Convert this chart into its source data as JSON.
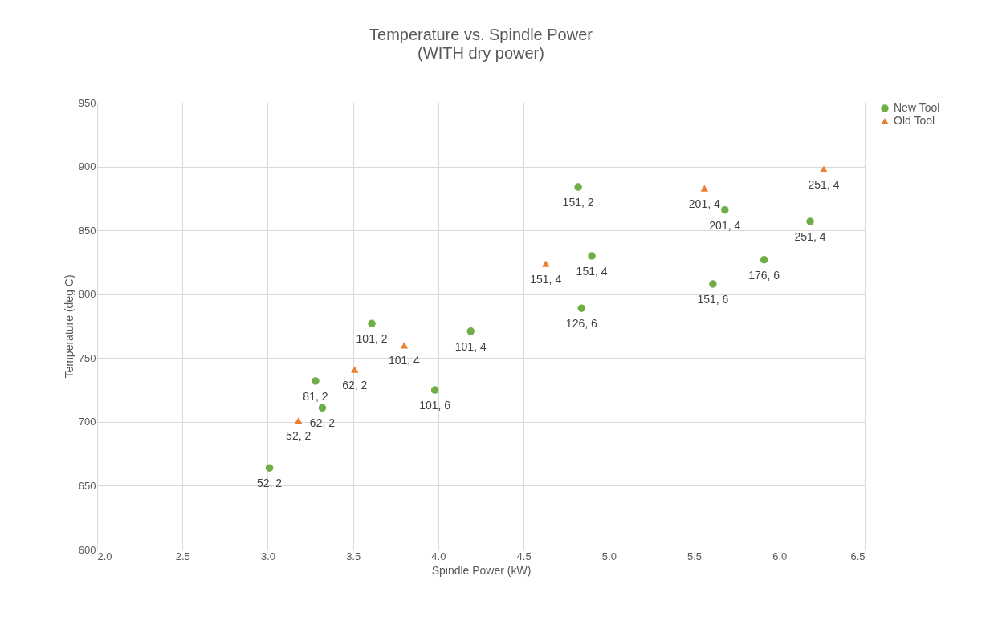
{
  "chart_data": {
    "type": "scatter",
    "title": "Temperature vs. Spindle Power",
    "subtitle": "(WITH dry power)",
    "xlabel": "Spindle Power (kW)",
    "ylabel": "Temperature (deg C)",
    "xlim": [
      2.0,
      6.5
    ],
    "xticks": [
      {
        "value": 2,
        "label": "2.0"
      },
      2.5,
      {
        "value": 3,
        "label": "3.0"
      },
      3.5,
      {
        "value": 4,
        "label": "4.0"
      },
      4.5,
      {
        "value": 5,
        "label": "5.0"
      },
      5.5,
      {
        "value": 6,
        "label": "6.0"
      },
      6.5
    ],
    "ylim": [
      600,
      950
    ],
    "yticks": [
      600,
      650,
      700,
      750,
      800,
      850,
      900,
      950
    ],
    "grid": true,
    "legend": "right",
    "series": [
      {
        "name": "New Tool",
        "color": "#70ad47",
        "marker": "circle",
        "x": [
          3.01,
          3.28,
          3.32,
          3.61,
          3.98,
          4.19,
          4.82,
          4.9,
          4.84,
          5.61,
          5.68,
          5.91,
          6.18
        ],
        "values": [
          664,
          732,
          711,
          777,
          725,
          771,
          884,
          830,
          789,
          808,
          866,
          827,
          857
        ]
      },
      {
        "name": "Old Tool",
        "color": "#ed7d31",
        "marker": "triangle",
        "x": [
          3.18,
          3.51,
          3.8,
          4.63,
          5.56,
          6.26
        ],
        "values": [
          701,
          741,
          760,
          824,
          883,
          898
        ]
      }
    ],
    "annotations": [
      {
        "text": "52, 2",
        "x": 3.01,
        "y": 664
      },
      {
        "text": "81, 2",
        "x": 3.28,
        "y": 732
      },
      {
        "text": "62, 2",
        "x": 3.32,
        "y": 711
      },
      {
        "text": "101, 2",
        "x": 3.61,
        "y": 777
      },
      {
        "text": "101, 6",
        "x": 3.98,
        "y": 725
      },
      {
        "text": "101, 4",
        "x": 4.19,
        "y": 771
      },
      {
        "text": "151, 2",
        "x": 4.82,
        "y": 884
      },
      {
        "text": "151, 4",
        "x": 4.9,
        "y": 830
      },
      {
        "text": "126, 6",
        "x": 4.84,
        "y": 789
      },
      {
        "text": "151, 6",
        "x": 5.61,
        "y": 808
      },
      {
        "text": "201, 4",
        "x": 5.68,
        "y": 866
      },
      {
        "text": "176, 6",
        "x": 5.91,
        "y": 827
      },
      {
        "text": "251, 4",
        "x": 6.18,
        "y": 857
      },
      {
        "text": "52, 2",
        "x": 3.18,
        "y": 701
      },
      {
        "text": "62, 2",
        "x": 3.51,
        "y": 741
      },
      {
        "text": "101, 4",
        "x": 3.8,
        "y": 760
      },
      {
        "text": "151, 4",
        "x": 4.63,
        "y": 824
      },
      {
        "text": "201, 4",
        "x": 5.56,
        "y": 883
      },
      {
        "text": "251, 4",
        "x": 6.26,
        "y": 898
      }
    ]
  }
}
